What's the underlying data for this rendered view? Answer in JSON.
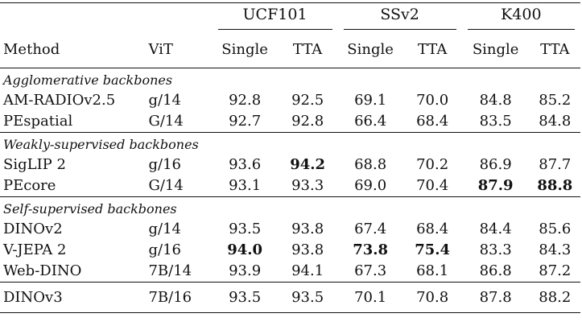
{
  "columns": {
    "method": "Method",
    "vit": "ViT",
    "groups": [
      "UCF101",
      "SSv2",
      "K400"
    ],
    "single": "Single",
    "tta": "TTA"
  },
  "sections": [
    {
      "title": "Agglomerative backbones",
      "rows": [
        {
          "method": "AM-RADIOv2.5",
          "vit": "g/14",
          "values": [
            "92.8",
            "92.5",
            "69.1",
            "70.0",
            "84.8",
            "85.2"
          ],
          "bold": []
        },
        {
          "method": "PEspatial",
          "vit": "G/14",
          "values": [
            "92.7",
            "92.8",
            "66.4",
            "68.4",
            "83.5",
            "84.8"
          ],
          "bold": []
        }
      ]
    },
    {
      "title": "Weakly-supervised backbones",
      "rows": [
        {
          "method": "SigLIP 2",
          "vit": "g/16",
          "values": [
            "93.6",
            "94.2",
            "68.8",
            "70.2",
            "86.9",
            "87.7"
          ],
          "bold": [
            1
          ]
        },
        {
          "method": "PEcore",
          "vit": "G/14",
          "values": [
            "93.1",
            "93.3",
            "69.0",
            "70.4",
            "87.9",
            "88.8"
          ],
          "bold": [
            4,
            5
          ]
        }
      ]
    },
    {
      "title": "Self-supervised backbones",
      "rows": [
        {
          "method": "DINOv2",
          "vit": "g/14",
          "values": [
            "93.5",
            "93.8",
            "67.4",
            "68.4",
            "84.4",
            "85.6"
          ],
          "bold": []
        },
        {
          "method": "V-JEPA 2",
          "vit": "g/16",
          "values": [
            "94.0",
            "93.8",
            "73.8",
            "75.4",
            "83.3",
            "84.3"
          ],
          "bold": [
            0,
            2,
            3
          ]
        },
        {
          "method": "Web-DINO",
          "vit": "7B/14",
          "values": [
            "93.9",
            "94.1",
            "67.3",
            "68.1",
            "86.8",
            "87.2"
          ],
          "bold": []
        }
      ]
    }
  ],
  "final_row": {
    "method": "DINOv3",
    "vit": "7B/16",
    "values": [
      "93.5",
      "93.5",
      "70.1",
      "70.8",
      "87.8",
      "88.2"
    ],
    "bold": []
  }
}
